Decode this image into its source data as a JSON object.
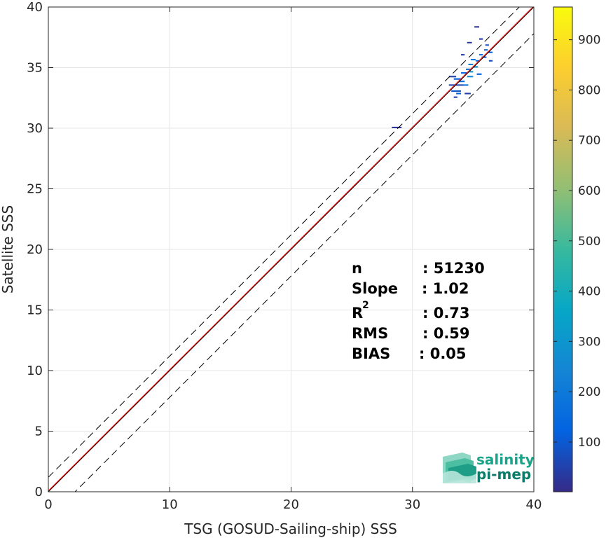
{
  "chart_data": {
    "type": "heatmap",
    "xlabel": "TSG (GOSUD-Sailing-ship) SSS",
    "ylabel": "Satellite SSS",
    "xlim": [
      0,
      40
    ],
    "ylim": [
      0,
      40
    ],
    "xticks": [
      "0",
      "10",
      "20",
      "30",
      "40"
    ],
    "yticks": [
      "0",
      "5",
      "10",
      "15",
      "20",
      "25",
      "30",
      "35",
      "40"
    ],
    "grid": true,
    "colormap": "parula",
    "colorbar": {
      "ticks": [
        "100",
        "200",
        "300",
        "400",
        "500",
        "600",
        "700",
        "800",
        "900"
      ],
      "range": [
        1,
        965
      ]
    },
    "lines": [
      {
        "name": "identity",
        "color": "#000000",
        "style": "solid",
        "slope": 1,
        "intercept": 0
      },
      {
        "name": "fit",
        "color": "#ff0000",
        "style": "solid",
        "slope": 1.0,
        "intercept": 0.08
      },
      {
        "name": "upper-bound",
        "color": "#000000",
        "style": "dashed",
        "slope": 1,
        "intercept": 1.2
      },
      {
        "name": "lower-bound",
        "color": "#000000",
        "style": "dashed",
        "slope": 1,
        "intercept": -2.2
      }
    ],
    "density_cells": [
      {
        "x": 28.3,
        "y": 30.0,
        "w": 0.8,
        "count": 20
      },
      {
        "x": 33.0,
        "y": 33.5,
        "w": 1.2,
        "count": 60
      },
      {
        "x": 33.2,
        "y": 33.0,
        "w": 0.8,
        "count": 90
      },
      {
        "x": 33.4,
        "y": 34.0,
        "w": 0.6,
        "count": 110
      },
      {
        "x": 33.6,
        "y": 32.8,
        "w": 0.4,
        "count": 130
      },
      {
        "x": 33.8,
        "y": 33.8,
        "w": 0.5,
        "count": 150
      },
      {
        "x": 34.0,
        "y": 34.5,
        "w": 0.5,
        "count": 120
      },
      {
        "x": 34.2,
        "y": 33.5,
        "w": 0.4,
        "count": 170
      },
      {
        "x": 34.4,
        "y": 34.8,
        "w": 0.4,
        "count": 200
      },
      {
        "x": 34.5,
        "y": 34.2,
        "w": 0.5,
        "count": 260
      },
      {
        "x": 34.6,
        "y": 35.2,
        "w": 0.4,
        "count": 220
      },
      {
        "x": 34.7,
        "y": 34.6,
        "w": 0.3,
        "count": 300
      },
      {
        "x": 34.8,
        "y": 35.6,
        "w": 0.4,
        "count": 180
      },
      {
        "x": 35.0,
        "y": 35.0,
        "w": 0.4,
        "count": 240
      },
      {
        "x": 35.2,
        "y": 35.5,
        "w": 0.3,
        "count": 160
      },
      {
        "x": 35.3,
        "y": 34.4,
        "w": 0.4,
        "count": 120
      },
      {
        "x": 35.5,
        "y": 36.0,
        "w": 0.3,
        "count": 140
      },
      {
        "x": 35.7,
        "y": 35.8,
        "w": 0.4,
        "count": 100
      },
      {
        "x": 35.9,
        "y": 36.4,
        "w": 0.3,
        "count": 130
      },
      {
        "x": 36.0,
        "y": 36.8,
        "w": 0.3,
        "count": 90
      },
      {
        "x": 36.2,
        "y": 36.2,
        "w": 0.4,
        "count": 110
      },
      {
        "x": 35.5,
        "y": 37.3,
        "w": 0.3,
        "count": 40
      },
      {
        "x": 34.5,
        "y": 37.0,
        "w": 0.4,
        "count": 30
      },
      {
        "x": 35.1,
        "y": 38.3,
        "w": 0.4,
        "count": 20
      },
      {
        "x": 33.4,
        "y": 32.5,
        "w": 0.3,
        "count": 50
      },
      {
        "x": 34.3,
        "y": 32.8,
        "w": 0.5,
        "count": 40
      },
      {
        "x": 33.0,
        "y": 34.2,
        "w": 0.6,
        "count": 45
      },
      {
        "x": 36.3,
        "y": 35.5,
        "w": 0.3,
        "count": 70
      },
      {
        "x": 34.0,
        "y": 36.0,
        "w": 0.3,
        "count": 35
      }
    ]
  },
  "stats": {
    "n_label": "n",
    "n_value": ": 51230",
    "slope_label": "Slope",
    "slope_value": ": 1.02",
    "r2_label": "R",
    "r2_sup": "2",
    "r2_value": ": 0.73",
    "rms_label": "RMS",
    "rms_value": ": 0.59",
    "bias_label": "BIAS",
    "bias_value": ": 0.05"
  },
  "logo": {
    "line1": "salinity",
    "line2": "pi-mep",
    "color1": "#1aa58a",
    "color2": "#0d7b6a"
  }
}
